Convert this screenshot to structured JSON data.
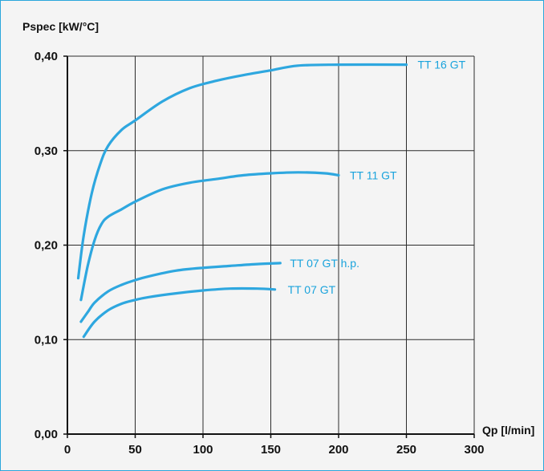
{
  "chart_data": {
    "type": "line",
    "title": "",
    "ylabel": "Pspec [kW/°C]",
    "xlabel": "Qp [l/min]",
    "xlim": [
      0,
      300
    ],
    "ylim": [
      0,
      0.4
    ],
    "x_ticks": [
      0,
      50,
      100,
      150,
      200,
      250,
      300
    ],
    "y_ticks": [
      0.0,
      0.1,
      0.2,
      0.3,
      0.4
    ],
    "x_tick_labels": [
      "0",
      "50",
      "100",
      "150",
      "200",
      "250",
      "300"
    ],
    "y_tick_labels": [
      "0,00",
      "0,10",
      "0,20",
      "0,30",
      "0,40"
    ],
    "grid": true,
    "line_color": "#2ea7df",
    "series": [
      {
        "name": "TT 16 GT",
        "x": [
          8,
          12,
          18,
          24,
          30,
          40,
          50,
          70,
          90,
          110,
          130,
          150,
          170,
          200,
          250
        ],
        "y": [
          0.165,
          0.21,
          0.255,
          0.285,
          0.305,
          0.322,
          0.332,
          0.352,
          0.366,
          0.374,
          0.38,
          0.385,
          0.39,
          0.391,
          0.391
        ]
      },
      {
        "name": "TT 11 GT",
        "x": [
          10,
          15,
          20,
          25,
          30,
          40,
          50,
          70,
          90,
          110,
          130,
          150,
          170,
          190,
          200
        ],
        "y": [
          0.142,
          0.178,
          0.205,
          0.222,
          0.23,
          0.238,
          0.246,
          0.259,
          0.266,
          0.27,
          0.274,
          0.276,
          0.277,
          0.276,
          0.274
        ]
      },
      {
        "name": "TT 07 GT h.p.",
        "x": [
          10,
          15,
          20,
          30,
          40,
          50,
          60,
          80,
          100,
          120,
          140,
          157
        ],
        "y": [
          0.119,
          0.129,
          0.139,
          0.151,
          0.158,
          0.163,
          0.167,
          0.173,
          0.176,
          0.178,
          0.18,
          0.181
        ]
      },
      {
        "name": "TT 07 GT",
        "x": [
          12,
          20,
          30,
          40,
          50,
          60,
          80,
          100,
          120,
          140,
          153
        ],
        "y": [
          0.103,
          0.119,
          0.131,
          0.138,
          0.142,
          0.145,
          0.149,
          0.152,
          0.154,
          0.154,
          0.153
        ]
      }
    ]
  }
}
